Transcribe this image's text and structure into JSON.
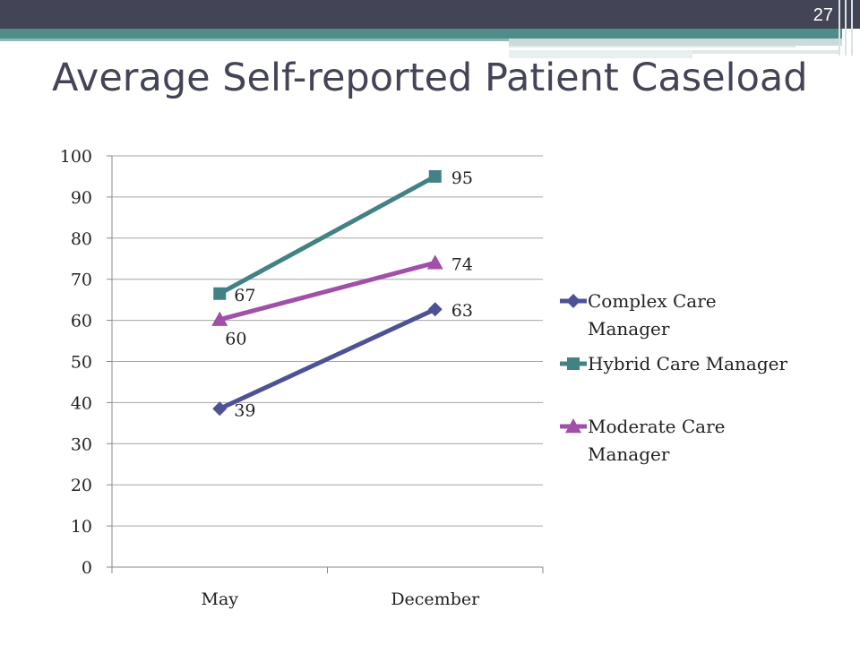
{
  "slide": {
    "title": "Average Self-reported Patient Caseload",
    "page_number": "27"
  },
  "chart_data": {
    "type": "line",
    "title": "Average Self-reported Patient Caseload",
    "categories": [
      "May",
      "December"
    ],
    "ylim": [
      0,
      100
    ],
    "yticks": [
      0,
      10,
      20,
      30,
      40,
      50,
      60,
      70,
      80,
      90,
      100
    ],
    "grid": true,
    "legend_position": "right",
    "series": [
      {
        "name": "Complex Care Manager",
        "values": [
          38.5,
          62.7
        ],
        "labels": [
          "39",
          "63"
        ],
        "color": "#4e5295",
        "marker": "diamond"
      },
      {
        "name": "Hybrid Care Manager",
        "values": [
          66.5,
          95
        ],
        "labels": [
          "67",
          "95"
        ],
        "color": "#428284",
        "marker": "square"
      },
      {
        "name": "Moderate Care Manager",
        "values": [
          60.2,
          74
        ],
        "labels": [
          "60",
          "74"
        ],
        "color": "#a050a8",
        "marker": "triangle"
      }
    ]
  }
}
